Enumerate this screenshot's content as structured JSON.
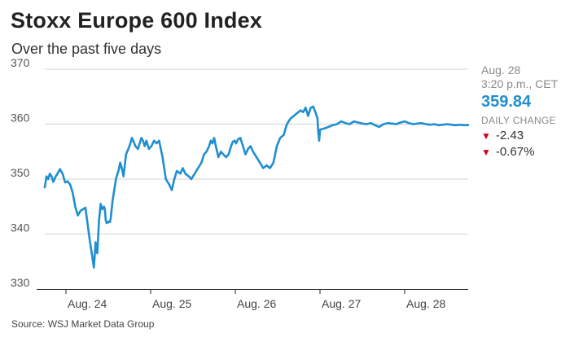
{
  "chart_data": {
    "type": "line",
    "title": "Stoxx Europe 600 Index",
    "subtitle": "Over the past five days",
    "ylim": [
      330,
      370
    ],
    "yticks": [
      330,
      340,
      350,
      360,
      370
    ],
    "xlim": [
      0,
      5
    ],
    "xticks": [
      {
        "label": "Aug. 24",
        "pos": 0.25
      },
      {
        "label": "Aug. 25",
        "pos": 1.25
      },
      {
        "label": "Aug. 26",
        "pos": 2.25
      },
      {
        "label": "Aug. 27",
        "pos": 3.25
      },
      {
        "label": "Aug. 28",
        "pos": 4.25
      }
    ],
    "series": [
      {
        "name": "Stoxx Europe 600",
        "color": "#1f8fcf",
        "x": [
          0.0,
          0.02,
          0.04,
          0.06,
          0.08,
          0.1,
          0.13,
          0.15,
          0.18,
          0.21,
          0.24,
          0.27,
          0.3,
          0.33,
          0.36,
          0.39,
          0.42,
          0.45,
          0.48,
          0.5,
          0.53,
          0.55,
          0.58,
          0.6,
          0.62,
          0.64,
          0.66,
          0.68,
          0.7,
          0.71,
          0.72,
          0.73,
          0.74,
          0.75,
          0.76,
          0.77,
          0.78,
          0.8,
          0.82,
          0.84,
          0.86,
          0.87,
          0.89,
          0.91,
          0.93,
          0.96,
          1.0,
          1.03,
          1.07,
          1.1,
          1.12,
          1.14,
          1.16,
          1.18,
          1.2,
          1.23,
          1.26,
          1.29,
          1.32,
          1.35,
          1.39,
          1.43,
          1.47,
          1.5,
          1.53,
          1.56,
          1.6,
          1.63,
          1.66,
          1.7,
          1.73,
          1.77,
          1.81,
          1.85,
          1.88,
          1.91,
          1.94,
          1.96,
          1.98,
          2.0,
          2.02,
          2.05,
          2.08,
          2.11,
          2.14,
          2.17,
          2.2,
          2.22,
          2.24,
          2.26,
          2.28,
          2.31,
          2.34,
          2.37,
          2.4,
          2.43,
          2.46,
          2.5,
          2.54,
          2.58,
          2.62,
          2.66,
          2.7,
          2.74,
          2.78,
          2.82,
          2.86,
          2.9,
          2.94,
          2.98,
          3.02,
          3.05,
          3.08,
          3.11,
          3.14,
          3.17,
          3.2,
          3.22,
          3.23,
          3.24,
          3.25,
          3.3,
          3.35,
          3.4,
          3.45,
          3.5,
          3.55,
          3.6,
          3.65,
          3.7,
          3.75,
          3.8,
          3.85,
          3.9,
          3.95,
          4.0,
          4.05,
          4.1,
          4.15,
          4.2,
          4.25,
          4.3,
          4.35,
          4.4,
          4.45,
          4.5,
          4.55,
          4.6,
          4.65,
          4.7,
          4.75,
          4.8,
          4.85,
          4.9,
          4.95,
          5.0
        ],
        "values": [
          348.5,
          350.5,
          350.0,
          351.0,
          350.5,
          349.5,
          350.5,
          351.0,
          351.8,
          351.0,
          349.4,
          349.6,
          349.0,
          347.5,
          345.0,
          343.4,
          344.2,
          344.5,
          344.8,
          342.5,
          339.0,
          337.0,
          333.9,
          338.5,
          336.5,
          342.5,
          345.5,
          344.5,
          345.0,
          344.5,
          342.5,
          342.0,
          342.2,
          342.1,
          342.3,
          342.2,
          343.0,
          346.0,
          348.0,
          350.0,
          351.0,
          351.5,
          353.0,
          352.0,
          350.5,
          354.5,
          356.0,
          357.5,
          356.0,
          355.5,
          356.5,
          357.5,
          357.0,
          356.0,
          357.0,
          355.5,
          356.0,
          357.0,
          356.5,
          357.0,
          354.0,
          350.0,
          349.0,
          348.0,
          350.0,
          351.5,
          351.0,
          352.0,
          351.0,
          350.5,
          350.0,
          351.0,
          352.0,
          353.0,
          354.5,
          355.0,
          356.0,
          357.0,
          356.5,
          357.5,
          356.0,
          354.0,
          355.0,
          354.5,
          354.0,
          354.5,
          356.0,
          356.8,
          357.0,
          356.5,
          357.2,
          357.5,
          356.0,
          354.5,
          355.5,
          356.0,
          355.0,
          354.0,
          353.0,
          352.0,
          352.5,
          352.0,
          353.0,
          356.0,
          357.5,
          358.0,
          360.0,
          361.0,
          361.5,
          362.0,
          362.5,
          362.2,
          363.0,
          361.5,
          363.0,
          363.2,
          362.0,
          361.0,
          358.5,
          357.0,
          359.0,
          359.2,
          359.5,
          359.8,
          360.0,
          360.5,
          360.2,
          360.0,
          360.5,
          360.3,
          360.1,
          360.0,
          360.2,
          359.8,
          359.5,
          360.0,
          360.2,
          360.1,
          360.0,
          360.3,
          360.5,
          360.2,
          360.0,
          360.1,
          360.2,
          360.0,
          359.9,
          360.0,
          359.8,
          359.9,
          360.0,
          359.9,
          359.8,
          359.9,
          359.8,
          359.84
        ]
      }
    ]
  },
  "panel": {
    "date": "Aug. 28",
    "time": "3:20 p.m., CET",
    "last": "359.84",
    "change_label": "DAILY CHANGE",
    "change_points": "-2.43",
    "change_pct": "-0.67%"
  },
  "source": "Source: WSJ Market Data Group",
  "colors": {
    "line": "#1f8fcf",
    "down": "#d0021b",
    "grid": "#d3d3d3",
    "axis": "#222222"
  },
  "icons": {
    "down": "down-triangle-icon"
  }
}
